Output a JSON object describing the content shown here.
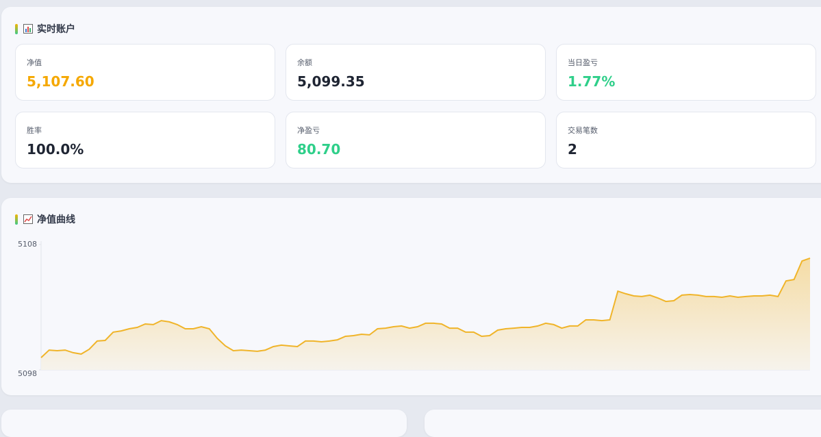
{
  "account": {
    "title": "实时账户",
    "cards": [
      {
        "label": "净值",
        "value": "5,107.60",
        "color": "#f5a800"
      },
      {
        "label": "余额",
        "value": "5,099.35",
        "color": "#1f2533"
      },
      {
        "label": "当日盈亏",
        "value": "1.77%",
        "color": "#2fcf8a"
      },
      {
        "label": "胜率",
        "value": "100.0%",
        "color": "#1f2533"
      },
      {
        "label": "净盈亏",
        "value": "80.70",
        "color": "#2fcf8a"
      },
      {
        "label": "交易笔数",
        "value": "2",
        "color": "#1f2533"
      }
    ]
  },
  "equity": {
    "title": "净值曲线"
  },
  "chart_data": {
    "type": "area",
    "color": "#f0b429",
    "ylim": [
      5098,
      5108
    ],
    "yticks": [
      5098,
      5108
    ],
    "values": [
      5098.98,
      5099.58,
      5099.53,
      5099.58,
      5099.37,
      5099.26,
      5099.64,
      5100.3,
      5100.35,
      5101.01,
      5101.11,
      5101.28,
      5101.39,
      5101.66,
      5101.61,
      5101.93,
      5101.83,
      5101.61,
      5101.28,
      5101.28,
      5101.44,
      5101.28,
      5100.51,
      5099.91,
      5099.53,
      5099.58,
      5099.53,
      5099.48,
      5099.58,
      5099.86,
      5099.97,
      5099.91,
      5099.86,
      5100.3,
      5100.3,
      5100.24,
      5100.3,
      5100.4,
      5100.68,
      5100.73,
      5100.84,
      5100.79,
      5101.28,
      5101.33,
      5101.44,
      5101.5,
      5101.33,
      5101.44,
      5101.72,
      5101.72,
      5101.66,
      5101.33,
      5101.33,
      5101.01,
      5101.01,
      5100.68,
      5100.73,
      5101.17,
      5101.28,
      5101.33,
      5101.39,
      5101.39,
      5101.5,
      5101.72,
      5101.61,
      5101.33,
      5101.5,
      5101.5,
      5101.99,
      5101.99,
      5101.93,
      5101.99,
      5104.28,
      5104.07,
      5103.9,
      5103.85,
      5103.96,
      5103.74,
      5103.46,
      5103.52,
      5103.96,
      5104.01,
      5103.96,
      5103.85,
      5103.85,
      5103.79,
      5103.9,
      5103.79,
      5103.85,
      5103.9,
      5103.9,
      5103.96,
      5103.85,
      5105.1,
      5105.21,
      5106.69,
      5106.91
    ]
  }
}
